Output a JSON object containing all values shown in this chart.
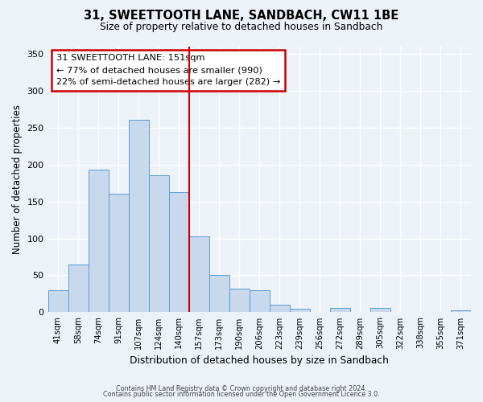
{
  "title": "31, SWEETTOOTH LANE, SANDBACH, CW11 1BE",
  "subtitle": "Size of property relative to detached houses in Sandbach",
  "xlabel": "Distribution of detached houses by size in Sandbach",
  "ylabel": "Number of detached properties",
  "bar_labels": [
    "41sqm",
    "58sqm",
    "74sqm",
    "91sqm",
    "107sqm",
    "124sqm",
    "140sqm",
    "157sqm",
    "173sqm",
    "190sqm",
    "206sqm",
    "223sqm",
    "239sqm",
    "256sqm",
    "272sqm",
    "289sqm",
    "305sqm",
    "322sqm",
    "338sqm",
    "355sqm",
    "371sqm"
  ],
  "bar_values": [
    30,
    65,
    193,
    160,
    261,
    185,
    163,
    103,
    50,
    32,
    30,
    10,
    5,
    0,
    6,
    0,
    6,
    0,
    0,
    0,
    3
  ],
  "bar_color": "#c9d9ed",
  "bar_edge_color": "#5b9bd5",
  "marker_label": "31 SWEETTOOTH LANE: 151sqm",
  "annotation_line1": "← 77% of detached houses are smaller (990)",
  "annotation_line2": "22% of semi-detached houses are larger (282) →",
  "marker_line_color": "#cc0000",
  "annotation_box_edge": "#cc0000",
  "bg_color": "#edf2f9",
  "grid_color": "#ffffff",
  "ylim": [
    0,
    360
  ],
  "footer1": "Contains HM Land Registry data © Crown copyright and database right 2024.",
  "footer2": "Contains public sector information licensed under the Open Government Licence 3.0."
}
